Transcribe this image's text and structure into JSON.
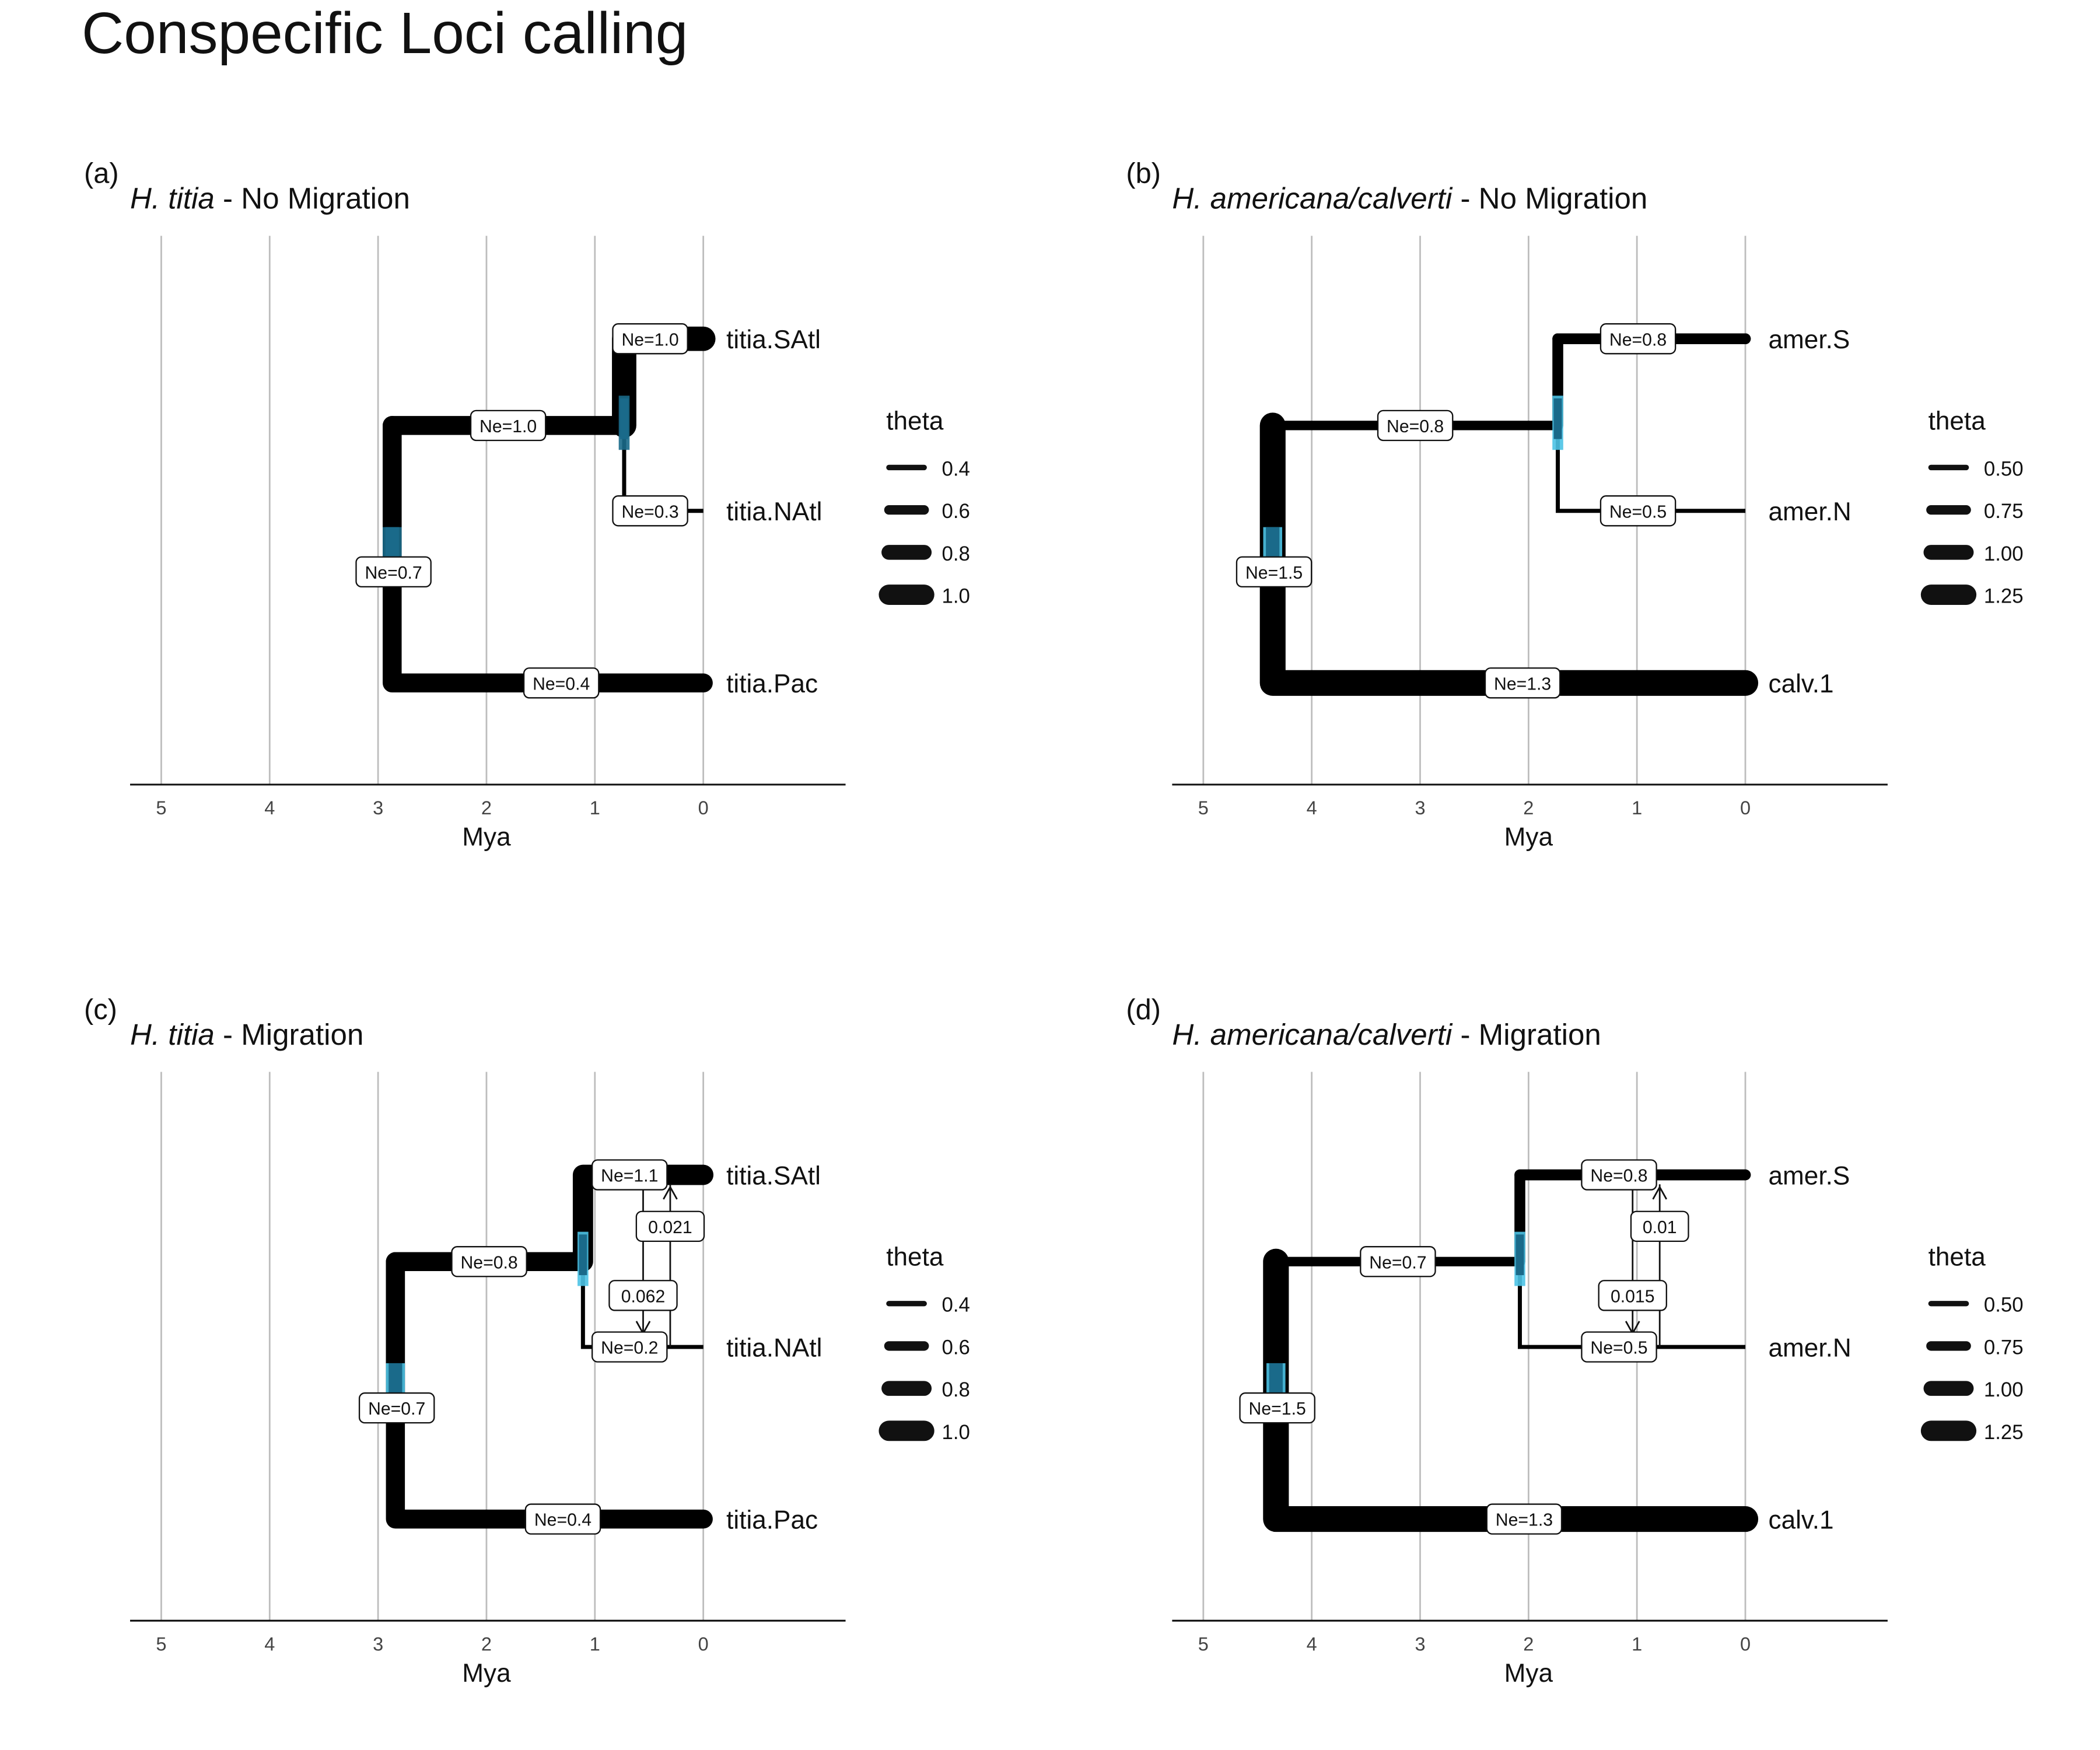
{
  "title": "Conspecific Loci calling",
  "x_axis": {
    "label": "Mya",
    "ticks": [
      5,
      4,
      3,
      2,
      1,
      0
    ]
  },
  "panels": [
    {
      "tag": "(a)",
      "species": "H. titia",
      "suffix": " - No Migration",
      "legend": {
        "title": "theta",
        "items": [
          "0.4",
          "0.6",
          "0.8",
          "1.0"
        ]
      },
      "tips": [
        {
          "label": "titia.SAtl"
        },
        {
          "label": "titia.NAtl"
        },
        {
          "label": "titia.Pac"
        }
      ],
      "branch_labels": [
        "Ne=1.0",
        "Ne=1.0",
        "Ne=0.3",
        "Ne=0.7",
        "Ne=0.4"
      ],
      "node_times_mya": {
        "root": 2.87,
        "inner": 0.73
      },
      "migration": []
    },
    {
      "tag": "(b)",
      "species": "H. americana/calverti",
      "suffix": " - No Migration",
      "legend": {
        "title": "theta",
        "items": [
          "0.50",
          "0.75",
          "1.00",
          "1.25"
        ]
      },
      "tips": [
        {
          "label": "amer.S"
        },
        {
          "label": "amer.N"
        },
        {
          "label": "calv.1"
        }
      ],
      "branch_labels": [
        "Ne=0.8",
        "Ne=0.8",
        "Ne=0.5",
        "Ne=1.5",
        "Ne=1.3"
      ],
      "node_times_mya": {
        "root": 4.36,
        "inner": 1.73
      },
      "migration": []
    },
    {
      "tag": "(c)",
      "species": "H. titia",
      "suffix": " - Migration",
      "legend": {
        "title": "theta",
        "items": [
          "0.4",
          "0.6",
          "0.8",
          "1.0"
        ]
      },
      "tips": [
        {
          "label": "titia.SAtl"
        },
        {
          "label": "titia.NAtl"
        },
        {
          "label": "titia.Pac"
        }
      ],
      "branch_labels": [
        "Ne=1.1",
        "Ne=0.8",
        "Ne=0.2",
        "Ne=0.7",
        "Ne=0.4"
      ],
      "node_times_mya": {
        "root": 2.84,
        "inner": 1.11
      },
      "migration": [
        {
          "rate": "0.021"
        },
        {
          "rate": "0.062"
        }
      ]
    },
    {
      "tag": "(d)",
      "species": "H. americana/calverti",
      "suffix": " - Migration",
      "legend": {
        "title": "theta",
        "items": [
          "0.50",
          "0.75",
          "1.00",
          "1.25"
        ]
      },
      "tips": [
        {
          "label": "amer.S"
        },
        {
          "label": "amer.N"
        },
        {
          "label": "calv.1"
        }
      ],
      "branch_labels": [
        "Ne=0.8",
        "Ne=0.7",
        "Ne=0.5",
        "Ne=1.5",
        "Ne=1.3"
      ],
      "node_times_mya": {
        "root": 4.33,
        "inner": 2.08
      },
      "migration": [
        {
          "rate": "0.01"
        },
        {
          "rate": "0.015"
        }
      ]
    }
  ],
  "colors": {
    "branch": "#000000",
    "grid": "#bdbdbd",
    "node_hpd": "#1a6a8a",
    "node_hpd_light": "#4cc3e6"
  }
}
